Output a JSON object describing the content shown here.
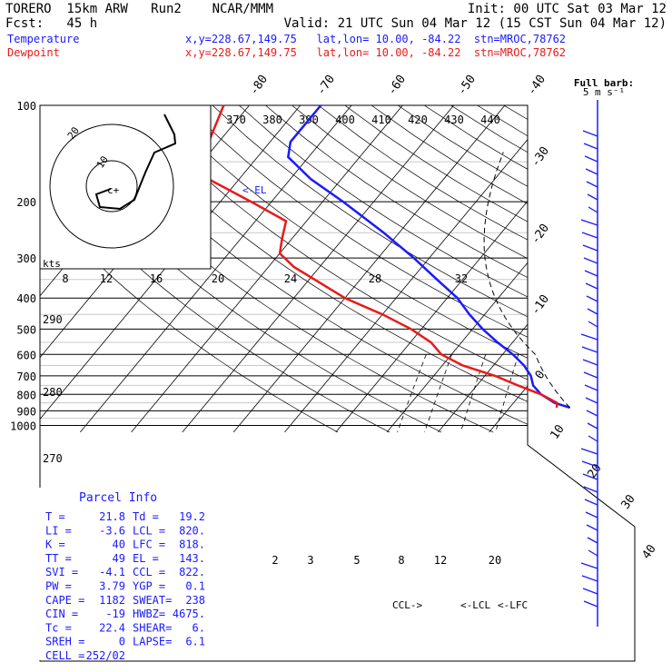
{
  "header": {
    "line1_left": "TORERO  15km ARW   Run2    NCAR/MMM",
    "line1_right": "Init: 00 UTC Sat 03 Mar 12",
    "line2_left": "Fcst:   45 h",
    "line2_right": "Valid: 21 UTC Sun 04 Mar 12 (15 CST Sun 04 Mar 12)",
    "temp_label": "Temperature",
    "dew_label": "Dewpoint",
    "location": "x,y=228.67,149.75   lat,lon= 10.00, -84.22  stn=MROC,78762"
  },
  "colors": {
    "temperature": "#1a1aff",
    "dewpoint": "#e81a1a"
  },
  "hodograph": {
    "speed_axis_label": "kts",
    "speed_ticks": [
      "8",
      "12",
      "16",
      "20"
    ],
    "ring_labels": [
      "20",
      "10"
    ]
  },
  "barb_key": {
    "title": "Full barb:",
    "subtitle": "5 m s⁻¹"
  },
  "el_marker": "<-EL",
  "lcl_markers": [
    "CCL->",
    "<-LCL",
    "<-LFC"
  ],
  "parcel_info": {
    "title": "Parcel Info",
    "left": [
      {
        "k": "T   =",
        "v": "21.8"
      },
      {
        "k": "LI  =",
        "v": "-3.6"
      },
      {
        "k": "K   =",
        "v": "40"
      },
      {
        "k": "TT  =",
        "v": "49"
      },
      {
        "k": "SVI =",
        "v": "-4.1"
      },
      {
        "k": "PW  =",
        "v": "3.79"
      },
      {
        "k": "CAPE =",
        "v": "1182"
      },
      {
        "k": "CIN  =",
        "v": "-19"
      },
      {
        "k": "Tc  =",
        "v": "22.4"
      },
      {
        "k": "SREH =",
        "v": "0"
      },
      {
        "k": "CELL =",
        "v": "252/02"
      }
    ],
    "right": [
      {
        "k": "Td =",
        "v": "19.2"
      },
      {
        "k": "LCL =",
        "v": "820."
      },
      {
        "k": "LFC =",
        "v": "818."
      },
      {
        "k": "EL =",
        "v": "143."
      },
      {
        "k": "CCL =",
        "v": "822."
      },
      {
        "k": "YGP =",
        "v": "0.1"
      },
      {
        "k": "SWEAT=",
        "v": "238"
      },
      {
        "k": "HWBZ=",
        "v": "4675."
      },
      {
        "k": "SHEAR=",
        "v": "6."
      },
      {
        "k": "LAPSE=",
        "v": "6.1"
      }
    ]
  },
  "chart_data": {
    "type": "line",
    "pressure_labels": [
      "100",
      "200",
      "300",
      "400",
      "500",
      "600",
      "700",
      "800",
      "900",
      "1000"
    ],
    "temperature_ticks": [
      "-80",
      "-70",
      "-60",
      "-50",
      "-40",
      "-30",
      "-20",
      "-10",
      "0",
      "10",
      "20",
      "30",
      "40"
    ],
    "theta_labels": [
      "370",
      "380",
      "390",
      "400",
      "410",
      "420",
      "430",
      "440"
    ],
    "theta_side_labels": [
      "290",
      "280",
      "270"
    ],
    "mixing_ratio_labels": [
      "2",
      "3",
      "5",
      "8",
      "12",
      "20"
    ],
    "series": [
      {
        "name": "Temperature",
        "points": [
          {
            "p": 100,
            "t": -76
          },
          {
            "p": 130,
            "t": -76
          },
          {
            "p": 145,
            "t": -74
          },
          {
            "p": 170,
            "t": -66
          },
          {
            "p": 200,
            "t": -56
          },
          {
            "p": 250,
            "t": -43
          },
          {
            "p": 300,
            "t": -33
          },
          {
            "p": 350,
            "t": -25
          },
          {
            "p": 400,
            "t": -18
          },
          {
            "p": 450,
            "t": -13
          },
          {
            "p": 500,
            "t": -8
          },
          {
            "p": 550,
            "t": -3
          },
          {
            "p": 600,
            "t": 2
          },
          {
            "p": 650,
            "t": 6
          },
          {
            "p": 700,
            "t": 9
          },
          {
            "p": 750,
            "t": 11
          },
          {
            "p": 800,
            "t": 14
          },
          {
            "p": 850,
            "t": 18
          },
          {
            "p": 880,
            "t": 21.8
          }
        ]
      },
      {
        "name": "Dewpoint",
        "points": [
          {
            "p": 100,
            "t": -95
          },
          {
            "p": 130,
            "t": -92
          },
          {
            "p": 150,
            "t": -90
          },
          {
            "p": 170,
            "t": -86
          },
          {
            "p": 200,
            "t": -74
          },
          {
            "p": 230,
            "t": -64
          },
          {
            "p": 260,
            "t": -62
          },
          {
            "p": 290,
            "t": -60
          },
          {
            "p": 320,
            "t": -55
          },
          {
            "p": 400,
            "t": -40
          },
          {
            "p": 450,
            "t": -30
          },
          {
            "p": 500,
            "t": -22
          },
          {
            "p": 550,
            "t": -16
          },
          {
            "p": 600,
            "t": -12
          },
          {
            "p": 650,
            "t": -6
          },
          {
            "p": 700,
            "t": 2
          },
          {
            "p": 750,
            "t": 8
          },
          {
            "p": 800,
            "t": 14
          },
          {
            "p": 850,
            "t": 18.5
          },
          {
            "p": 880,
            "t": 19.2
          }
        ]
      }
    ]
  }
}
